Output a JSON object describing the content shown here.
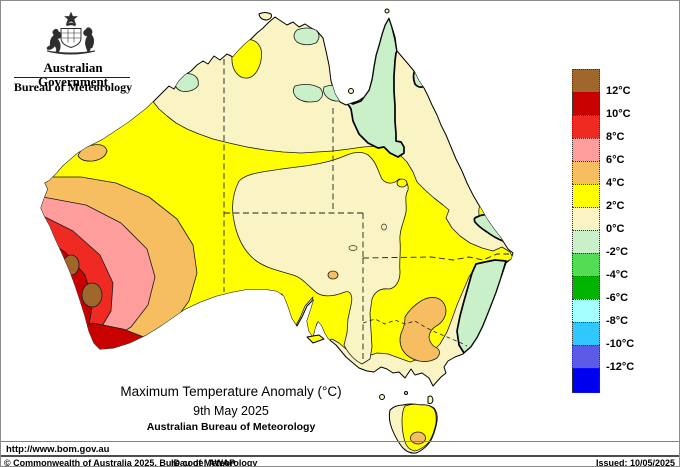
{
  "colors": {
    "sea": "#FFFFFF",
    "land_cream": "#FAF3C3",
    "yellow": "#FFFF00",
    "pale_green": "#C9F0C9",
    "orange": "#F6BE60",
    "pink": "#FF9D9D",
    "red": "#EE2A22",
    "dark_red": "#C80000",
    "brown": "#A0672D",
    "light_green": "#55DC55",
    "green": "#00B400",
    "pale_cyan": "#A5FFFF",
    "cyan": "#30C8FF",
    "blue_violet": "#5B5BE8",
    "blue": "#0000EE"
  },
  "header": {
    "government": "Australian Government",
    "bureau": "Bureau of Meteorology"
  },
  "legend": {
    "swatch_colors": [
      "#A0672D",
      "#C80000",
      "#EE2A22",
      "#FF9D9D",
      "#F6BE60",
      "#FFFF00",
      "#FAF3C3",
      "#C9F0C9",
      "#55DC55",
      "#00B400",
      "#A5FFFF",
      "#30C8FF",
      "#5B5BE8",
      "#0000EE"
    ],
    "labels": [
      "12°C",
      "10°C",
      "8°C",
      "6°C",
      "4°C",
      "2°C",
      "0°C",
      "-2°C",
      "-4°C",
      "-6°C",
      "-8°C",
      "-10°C",
      "-12°C"
    ]
  },
  "title": {
    "heading": "Maximum Temperature Anomaly (°C)",
    "date": "9th May 2025",
    "org": "Australian Bureau of Meteorology"
  },
  "footer": {
    "url": "http://www.bom.gov.au",
    "copyright": "© Commonwealth of Australia 2025, Bureau of Meteorology",
    "id_code": "ID code: AWAP",
    "issued": "Issued: 10/05/2025"
  }
}
